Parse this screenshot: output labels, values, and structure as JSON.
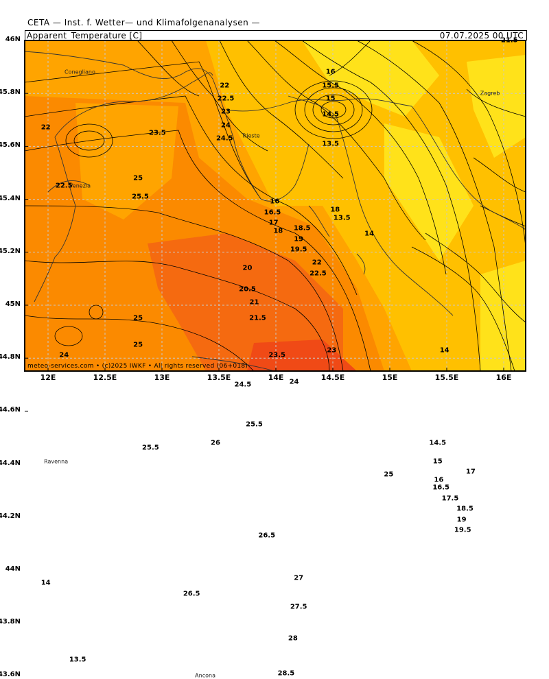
{
  "header": {
    "title": "CETA — Inst. f. Wetter— und Klimafolgenanalysen —",
    "variable": "Apparent_Temperature [C]",
    "timestamp": "07.07.2025 00 UTC"
  },
  "footer": "meteo-services.com • (c)2025 IWKF • All rights reserved (06+018)",
  "axes": {
    "y_ticks": [
      "46N",
      "45.8N",
      "45.6N",
      "45.4N",
      "45.2N",
      "45N",
      "44.8N",
      "44.6N",
      "44.4N",
      "44.2N",
      "44N",
      "43.8N",
      "43.6N"
    ],
    "x_ticks": [
      "12E",
      "12.5E",
      "13E",
      "13.5E",
      "14E",
      "14.5E",
      "15E",
      "15.5E",
      "16E"
    ]
  },
  "places": [
    {
      "name": "Conegliano",
      "lon": 12.28,
      "lat": 45.88
    },
    {
      "name": "Venezia",
      "lon": 12.28,
      "lat": 45.45
    },
    {
      "name": "Trieste",
      "lon": 13.78,
      "lat": 45.64
    },
    {
      "name": "Zagreb",
      "lon": 15.88,
      "lat": 45.8
    },
    {
      "name": "Ravenna",
      "lon": 12.07,
      "lat": 44.41
    },
    {
      "name": "Ancona",
      "lon": 13.38,
      "lat": 43.6
    }
  ],
  "contour_labels": [
    {
      "text": "21.5",
      "lon": 16.05,
      "lat": 46.0
    },
    {
      "text": "22",
      "lon": 11.98,
      "lat": 45.67
    },
    {
      "text": "22.5",
      "lon": 12.14,
      "lat": 45.45
    },
    {
      "text": "23.5",
      "lon": 12.96,
      "lat": 45.65
    },
    {
      "text": "25",
      "lon": 12.79,
      "lat": 45.48
    },
    {
      "text": "25.5",
      "lon": 12.81,
      "lat": 45.41
    },
    {
      "text": "22",
      "lon": 13.55,
      "lat": 45.83
    },
    {
      "text": "22.5",
      "lon": 13.56,
      "lat": 45.78
    },
    {
      "text": "23",
      "lon": 13.56,
      "lat": 45.73
    },
    {
      "text": "24",
      "lon": 13.56,
      "lat": 45.68
    },
    {
      "text": "24.5",
      "lon": 13.55,
      "lat": 45.63
    },
    {
      "text": "16",
      "lon": 14.48,
      "lat": 45.88
    },
    {
      "text": "15.5",
      "lon": 14.48,
      "lat": 45.83
    },
    {
      "text": "15",
      "lon": 14.48,
      "lat": 45.78
    },
    {
      "text": "14.5",
      "lon": 14.48,
      "lat": 45.72
    },
    {
      "text": "13.5",
      "lon": 14.48,
      "lat": 45.61
    },
    {
      "text": "16",
      "lon": 13.99,
      "lat": 45.39
    },
    {
      "text": "16.5",
      "lon": 13.97,
      "lat": 45.35
    },
    {
      "text": "17",
      "lon": 13.98,
      "lat": 45.31
    },
    {
      "text": "18",
      "lon": 14.02,
      "lat": 45.28
    },
    {
      "text": "18.5",
      "lon": 14.23,
      "lat": 45.29
    },
    {
      "text": "19",
      "lon": 14.2,
      "lat": 45.25
    },
    {
      "text": "19.5",
      "lon": 14.2,
      "lat": 45.21
    },
    {
      "text": "18",
      "lon": 14.52,
      "lat": 45.36
    },
    {
      "text": "13.5",
      "lon": 14.58,
      "lat": 45.33
    },
    {
      "text": "14",
      "lon": 14.82,
      "lat": 45.27
    },
    {
      "text": "20",
      "lon": 13.75,
      "lat": 45.14
    },
    {
      "text": "20.5",
      "lon": 13.75,
      "lat": 45.06
    },
    {
      "text": "21",
      "lon": 13.81,
      "lat": 45.01
    },
    {
      "text": "21.5",
      "lon": 13.84,
      "lat": 44.95
    },
    {
      "text": "22",
      "lon": 14.36,
      "lat": 45.16
    },
    {
      "text": "22.5",
      "lon": 14.37,
      "lat": 45.12
    },
    {
      "text": "25",
      "lon": 12.79,
      "lat": 44.95
    },
    {
      "text": "25",
      "lon": 12.79,
      "lat": 44.85
    },
    {
      "text": "24",
      "lon": 12.14,
      "lat": 44.81
    },
    {
      "text": "23.5",
      "lon": 14.01,
      "lat": 44.81
    },
    {
      "text": "24.5",
      "lon": 13.71,
      "lat": 44.7
    },
    {
      "text": "24",
      "lon": 14.16,
      "lat": 44.71
    },
    {
      "text": "23",
      "lon": 14.49,
      "lat": 44.83
    },
    {
      "text": "14",
      "lon": 15.48,
      "lat": 44.83
    },
    {
      "text": "25.5",
      "lon": 13.81,
      "lat": 44.55
    },
    {
      "text": "25.5",
      "lon": 12.9,
      "lat": 44.46
    },
    {
      "text": "26",
      "lon": 13.47,
      "lat": 44.48
    },
    {
      "text": "25",
      "lon": 14.99,
      "lat": 44.36
    },
    {
      "text": "14.5",
      "lon": 15.42,
      "lat": 44.48
    },
    {
      "text": "15",
      "lon": 15.42,
      "lat": 44.41
    },
    {
      "text": "16",
      "lon": 15.43,
      "lat": 44.34
    },
    {
      "text": "16.5",
      "lon": 15.45,
      "lat": 44.31
    },
    {
      "text": "17",
      "lon": 15.71,
      "lat": 44.37
    },
    {
      "text": "17.5",
      "lon": 15.53,
      "lat": 44.27
    },
    {
      "text": "18.5",
      "lon": 15.66,
      "lat": 44.23
    },
    {
      "text": "19",
      "lon": 15.63,
      "lat": 44.19
    },
    {
      "text": "19.5",
      "lon": 15.64,
      "lat": 44.15
    },
    {
      "text": "26.5",
      "lon": 13.92,
      "lat": 44.13
    },
    {
      "text": "27",
      "lon": 14.2,
      "lat": 43.97
    },
    {
      "text": "27.5",
      "lon": 14.2,
      "lat": 43.86
    },
    {
      "text": "28",
      "lon": 14.15,
      "lat": 43.74
    },
    {
      "text": "28.5",
      "lon": 14.09,
      "lat": 43.61
    },
    {
      "text": "26.5",
      "lon": 13.26,
      "lat": 43.91
    },
    {
      "text": "14",
      "lon": 11.98,
      "lat": 43.95
    },
    {
      "text": "13.5",
      "lon": 12.26,
      "lat": 43.66
    }
  ],
  "colors": {
    "yellow_light": "#ffe21a",
    "yellow": "#ffc000",
    "orange_light": "#ffa400",
    "orange": "#fb8a00",
    "orange_dark": "#f56a10",
    "red_orange": "#f04a16",
    "grid": "#c8c8c8",
    "contour": "#000000"
  }
}
